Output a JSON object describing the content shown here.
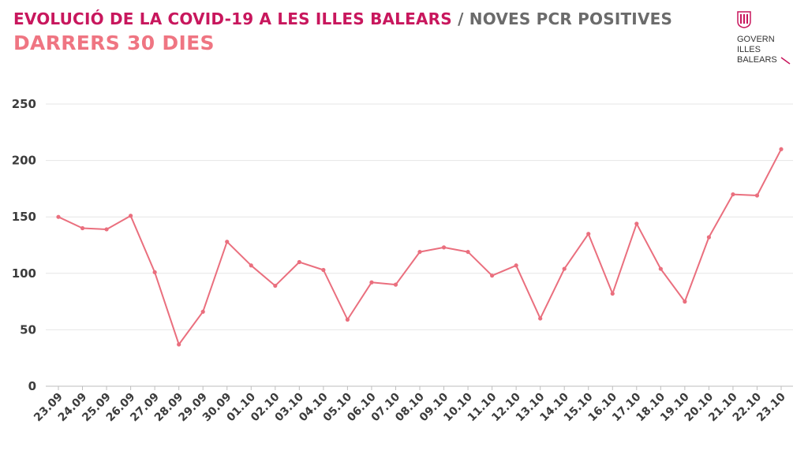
{
  "header": {
    "title_main": "EVOLUCIÓ DE LA COVID-19 A LES ILLES BALEARS",
    "title_separator": "/",
    "title_sub": "NOVES PCR POSITIVES",
    "subtitle": "DARRERS 30 DIES"
  },
  "logo": {
    "icon": "govern-crest-icon",
    "lines": [
      "GOVERN",
      "ILLES",
      "BALEARS"
    ]
  },
  "colors": {
    "title": "#c8175d",
    "secondary_title": "#6b6b6b",
    "subtitle": "#ef7582",
    "line": "#ea6f7e",
    "grid": "#e6e6e6",
    "axis": "#bdbdbd",
    "tick_text": "#3c3c3c"
  },
  "chart_data": {
    "type": "line",
    "title": "EVOLUCIÓ DE LA COVID-19 A LES ILLES BALEARS / NOVES PCR POSITIVES",
    "subtitle": "DARRERS 30 DIES",
    "xlabel": "",
    "ylabel": "",
    "ylim": [
      0,
      250
    ],
    "yticks": [
      0,
      50,
      100,
      150,
      200,
      250
    ],
    "grid": true,
    "legend": "none",
    "categories": [
      "23.09",
      "24.09",
      "25.09",
      "26.09",
      "27.09",
      "28.09",
      "29.09",
      "30.09",
      "01.10",
      "02.10",
      "03.10",
      "04.10",
      "05.10",
      "06.10",
      "07.10",
      "08.10",
      "09.10",
      "10.10",
      "11.10",
      "12.10",
      "13.10",
      "14.10",
      "15.10",
      "16.10",
      "17.10",
      "18.10",
      "19.10",
      "20.10",
      "21.10",
      "22.10",
      "23.10"
    ],
    "series": [
      {
        "values": [
          150,
          140,
          139,
          151,
          101,
          37,
          66,
          128,
          107,
          89,
          110,
          103,
          59,
          92,
          90,
          119,
          123,
          119,
          98,
          107,
          60,
          104,
          135,
          82,
          144,
          104,
          75,
          132,
          170,
          169,
          210
        ]
      }
    ]
  }
}
